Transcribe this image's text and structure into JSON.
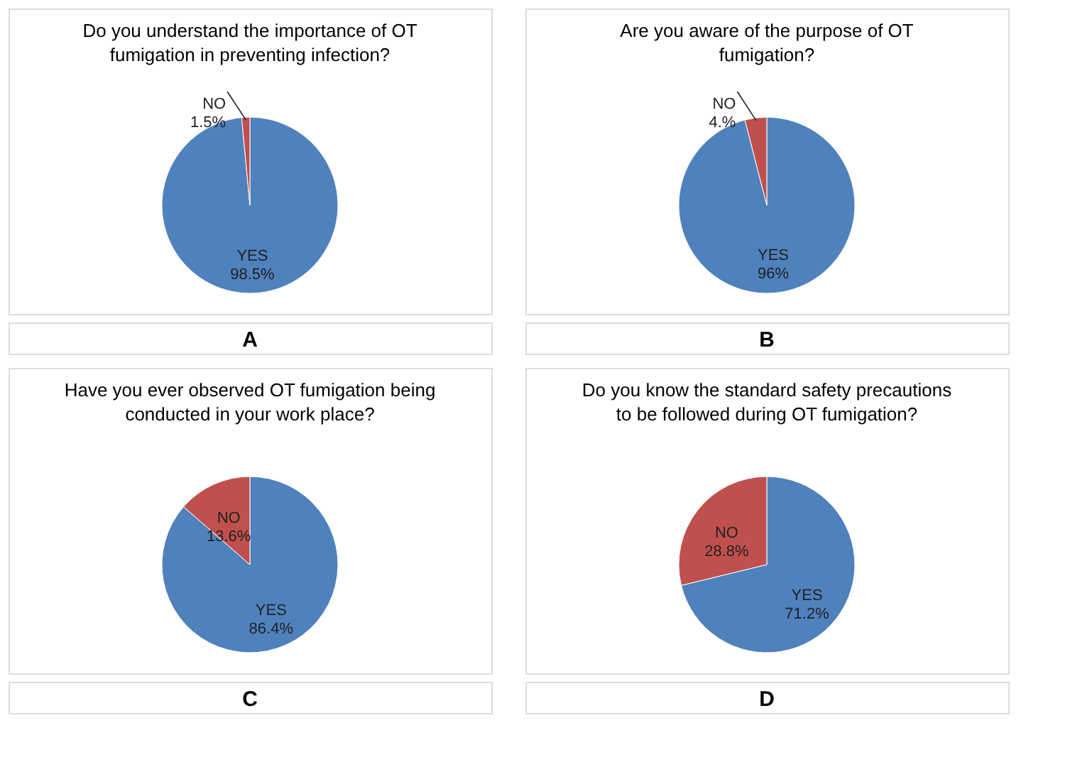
{
  "chart_data": [
    {
      "type": "pie",
      "title": "Do you understand the importance of OT fumigation in preventing infection?",
      "categories": [
        "YES",
        "NO"
      ],
      "values": [
        98.5,
        1.5
      ],
      "colors": [
        "#4f81bd",
        "#c0504d"
      ],
      "value_labels": [
        "98.5%",
        "1.5%"
      ],
      "annotations": [
        "A"
      ]
    },
    {
      "type": "pie",
      "title": "Are you aware of the purpose of OT fumigation?",
      "categories": [
        "YES",
        "NO"
      ],
      "values": [
        96,
        4
      ],
      "colors": [
        "#4f81bd",
        "#c0504d"
      ],
      "value_labels": [
        "96%",
        "4.%"
      ],
      "annotations": [
        "B"
      ]
    },
    {
      "type": "pie",
      "title": "Have you ever observed OT fumigation being conducted in your work place?",
      "categories": [
        "YES",
        "NO"
      ],
      "values": [
        86.4,
        13.6
      ],
      "colors": [
        "#4f81bd",
        "#c0504d"
      ],
      "value_labels": [
        "86.4%",
        "13.6%"
      ],
      "annotations": [
        "C"
      ]
    },
    {
      "type": "pie",
      "title": "Do you know the standard safety precautions to be followed during OT fumigation?",
      "categories": [
        "YES",
        "NO"
      ],
      "values": [
        71.2,
        28.8
      ],
      "colors": [
        "#4f81bd",
        "#c0504d"
      ],
      "value_labels": [
        "71.2%",
        "28.8%"
      ],
      "annotations": [
        "D"
      ]
    }
  ]
}
